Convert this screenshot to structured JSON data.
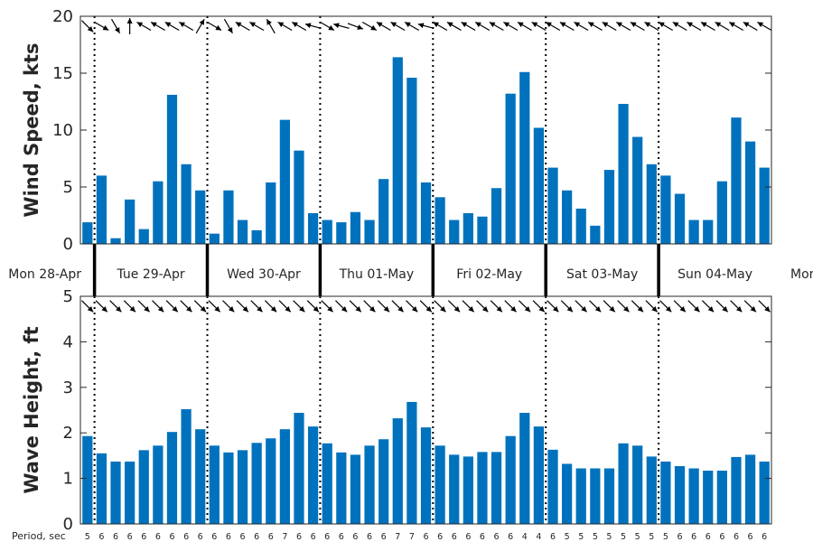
{
  "chart_data": [
    {
      "type": "bar",
      "panel": "wind",
      "ylabel": "Wind Speed, kts",
      "ylim": [
        0,
        20
      ],
      "yticks": [
        "0",
        "5",
        "10",
        "15",
        "20"
      ],
      "values": [
        1.9,
        6.0,
        0.5,
        3.9,
        1.3,
        5.5,
        13.1,
        7.0,
        4.7,
        0.9,
        4.7,
        2.1,
        1.2,
        5.4,
        10.9,
        8.2,
        2.7,
        2.1,
        1.9,
        2.8,
        2.1,
        5.7,
        16.4,
        14.6,
        5.4,
        4.1,
        2.1,
        2.7,
        2.4,
        4.9,
        13.2,
        15.1,
        10.2,
        6.7,
        4.7,
        3.1,
        1.6,
        6.5,
        12.3,
        9.4,
        7.0,
        6.0,
        4.4,
        2.1,
        2.1,
        5.5,
        11.1,
        9.0,
        6.7
      ],
      "direction_arrows_deg": [
        135,
        120,
        150,
        0,
        300,
        300,
        300,
        300,
        30,
        120,
        150,
        300,
        300,
        330,
        300,
        300,
        285,
        120,
        285,
        110,
        120,
        300,
        300,
        300,
        285,
        300,
        300,
        300,
        300,
        300,
        300,
        300,
        300,
        300,
        300,
        300,
        300,
        300,
        300,
        300,
        300,
        300,
        300,
        300,
        300,
        300,
        300,
        300,
        300
      ],
      "grid": false
    },
    {
      "type": "bar",
      "panel": "wave",
      "ylabel": "Wave Height, ft",
      "ylim": [
        0,
        5
      ],
      "yticks": [
        "0",
        "1",
        "2",
        "3",
        "4",
        "5"
      ],
      "values": [
        1.93,
        1.55,
        1.37,
        1.37,
        1.62,
        1.72,
        2.02,
        2.52,
        2.08,
        1.72,
        1.57,
        1.62,
        1.78,
        1.88,
        2.08,
        2.44,
        2.14,
        1.77,
        1.57,
        1.52,
        1.72,
        1.86,
        2.32,
        2.68,
        2.12,
        1.72,
        1.52,
        1.48,
        1.58,
        1.58,
        1.93,
        2.44,
        2.14,
        1.63,
        1.32,
        1.22,
        1.22,
        1.22,
        1.77,
        1.72,
        1.48,
        1.37,
        1.27,
        1.22,
        1.17,
        1.17,
        1.47,
        1.52,
        1.37
      ],
      "direction_arrows_deg": [
        135,
        135,
        135,
        135,
        135,
        135,
        135,
        135,
        135,
        135,
        135,
        135,
        135,
        135,
        135,
        135,
        135,
        135,
        135,
        135,
        135,
        135,
        135,
        135,
        135,
        135,
        135,
        135,
        135,
        135,
        135,
        135,
        135,
        135,
        135,
        135,
        135,
        135,
        135,
        135,
        135,
        135,
        135,
        135,
        135,
        135,
        135,
        135,
        135
      ],
      "grid": false
    }
  ],
  "days": [
    "Mon 28-Apr",
    "Tue 29-Apr",
    "Wed 30-Apr",
    "Thu 01-May",
    "Fri 02-May",
    "Sat 03-May",
    "Sun 04-May",
    "Mon"
  ],
  "period_label": "Period, sec",
  "periods": [
    "5",
    "6",
    "6",
    "6",
    "6",
    "6",
    "6",
    "6",
    "6",
    "6",
    "6",
    "6",
    "6",
    "6",
    "7",
    "6",
    "6",
    "6",
    "6",
    "6",
    "6",
    "6",
    "7",
    "7",
    "6",
    "6",
    "6",
    "6",
    "6",
    "6",
    "6",
    "4",
    "4",
    "6",
    "5",
    "5",
    "5",
    "5",
    "5",
    "5",
    "5",
    "5",
    "6",
    "6",
    "6",
    "6",
    "6",
    "6",
    "6"
  ]
}
